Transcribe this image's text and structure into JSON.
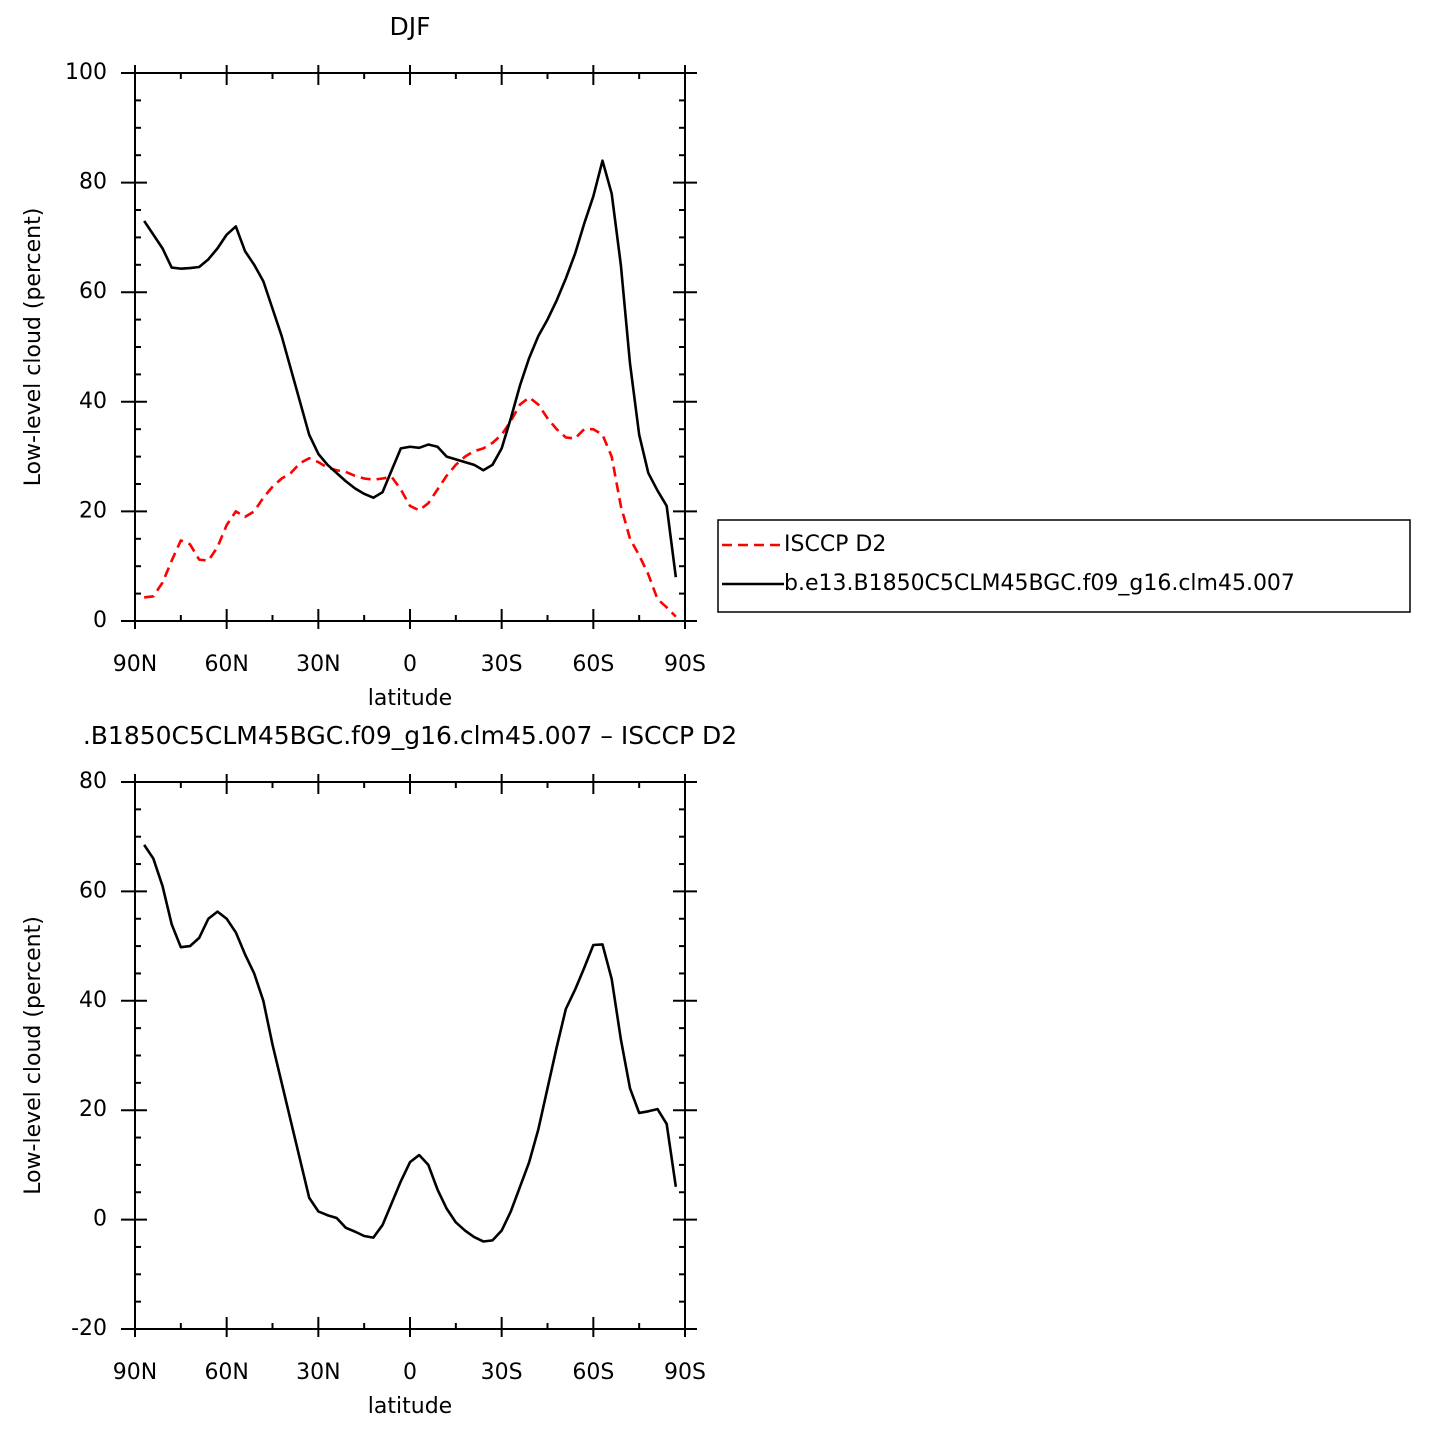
{
  "chart_data": [
    {
      "type": "line",
      "title": "DJF",
      "xlabel": "latitude",
      "ylabel": "Low-level cloud (percent)",
      "xlim": [
        90,
        -90
      ],
      "xticks": [
        {
          "value": 90,
          "label": "90N"
        },
        {
          "value": 60,
          "label": "60N"
        },
        {
          "value": 30,
          "label": "30N"
        },
        0,
        {
          "value": -30,
          "label": "30S"
        },
        {
          "value": -60,
          "label": "60S"
        },
        {
          "value": -90,
          "label": "90S"
        }
      ],
      "xminor": [
        75,
        45,
        15,
        -15,
        -45,
        -75
      ],
      "ylim": [
        0,
        100
      ],
      "yticks": [
        0,
        20,
        40,
        60,
        80,
        100
      ],
      "yminor": [
        5,
        10,
        15,
        25,
        30,
        35,
        45,
        50,
        55,
        65,
        70,
        75,
        85,
        90,
        95
      ],
      "legend": "right",
      "x": [
        87,
        84,
        81,
        78,
        75,
        72,
        69,
        66,
        63,
        60,
        57,
        54,
        51,
        48,
        45,
        42,
        39,
        36,
        33,
        30,
        27,
        24,
        21,
        18,
        15,
        12,
        9,
        6,
        3,
        0,
        -3,
        -6,
        -9,
        -12,
        -15,
        -18,
        -21,
        -24,
        -27,
        -30,
        -33,
        -36,
        -39,
        -42,
        -45,
        -48,
        -51,
        -54,
        -57,
        -60,
        -63,
        -66,
        -69,
        -72,
        -75,
        -78,
        -81,
        -84,
        -87
      ],
      "series": [
        {
          "name": "ISCCP D2",
          "color": "#ff0000",
          "dash": true,
          "values": [
            4.3,
            4.5,
            7,
            11,
            14.7,
            14,
            11.2,
            11,
            13.5,
            17.5,
            20,
            19,
            20,
            22.5,
            24.5,
            26,
            27,
            28.8,
            29.7,
            29,
            28,
            27.5,
            27.2,
            26.5,
            26,
            25.8,
            26,
            26.3,
            24,
            21,
            20.2,
            21.5,
            24,
            26.5,
            28.5,
            30,
            31,
            31.5,
            32.5,
            34,
            36.5,
            39.5,
            40.8,
            39.5,
            37,
            35,
            33.5,
            33.3,
            35,
            35,
            34,
            30,
            21,
            15,
            12,
            8.5,
            4,
            2.5,
            0.8
          ]
        },
        {
          "name": "b.e13.B1850C5CLM45BGC.f09_g16.clm45.007",
          "color": "#000000",
          "dash": false,
          "values": [
            73,
            70.5,
            68,
            64.5,
            64.3,
            64.4,
            64.6,
            66,
            68,
            70.5,
            72,
            67.5,
            65,
            62,
            57,
            52,
            46,
            40,
            34,
            30.5,
            28.5,
            27,
            25.5,
            24.2,
            23.2,
            22.5,
            23.5,
            27.5,
            31.5,
            31.8,
            31.6,
            32.2,
            31.8,
            30,
            29.5,
            29,
            28.5,
            27.5,
            28.5,
            31.5,
            37,
            43,
            48,
            52,
            55,
            58.5,
            62.5,
            67,
            72.5,
            77.5,
            84,
            78,
            65,
            47,
            34,
            27,
            23.8,
            21,
            8
          ]
        }
      ]
    },
    {
      "type": "line",
      "title": ".B1850C5CLM45BGC.f09_g16.clm45.007 – ISCCP D2",
      "xlabel": "latitude",
      "ylabel": "Low-level cloud (percent)",
      "xlim": [
        90,
        -90
      ],
      "xticks": [
        {
          "value": 90,
          "label": "90N"
        },
        {
          "value": 60,
          "label": "60N"
        },
        {
          "value": 30,
          "label": "30N"
        },
        0,
        {
          "value": -30,
          "label": "30S"
        },
        {
          "value": -60,
          "label": "60S"
        },
        {
          "value": -90,
          "label": "90S"
        }
      ],
      "xminor": [
        75,
        45,
        15,
        -15,
        -45,
        -75
      ],
      "ylim": [
        -20,
        80
      ],
      "yticks": [
        -20,
        0,
        20,
        40,
        60,
        80
      ],
      "yminor": [
        -15,
        -10,
        -5,
        5,
        10,
        15,
        25,
        30,
        35,
        45,
        50,
        55,
        65,
        70,
        75
      ],
      "x": [
        87,
        84,
        81,
        78,
        75,
        72,
        69,
        66,
        63,
        60,
        57,
        54,
        51,
        48,
        45,
        42,
        39,
        36,
        33,
        30,
        27,
        24,
        21,
        18,
        15,
        12,
        9,
        6,
        3,
        0,
        -3,
        -6,
        -9,
        -12,
        -15,
        -18,
        -21,
        -24,
        -27,
        -30,
        -33,
        -36,
        -39,
        -42,
        -45,
        -48,
        -51,
        -54,
        -57,
        -60,
        -63,
        -66,
        -69,
        -72,
        -75,
        -78,
        -81,
        -84,
        -87
      ],
      "series": [
        {
          "color": "#000000",
          "dash": false,
          "values": [
            68.5,
            66,
            61,
            54,
            49.8,
            50,
            51.5,
            55,
            56.3,
            55,
            52.5,
            48.5,
            45,
            40,
            32,
            25,
            18,
            11,
            4,
            1.5,
            0.8,
            0.3,
            -1.5,
            -2.2,
            -3,
            -3.3,
            -1,
            3,
            7,
            10.5,
            11.8,
            10,
            5.5,
            2,
            -0.5,
            -2,
            -3.2,
            -4,
            -3.8,
            -2,
            1.5,
            6,
            10.5,
            16.5,
            24,
            31.5,
            38.5,
            42,
            46,
            50.2,
            50.3,
            44,
            33,
            24,
            19.5,
            19.8,
            20.2,
            17.5,
            6
          ]
        }
      ]
    }
  ]
}
